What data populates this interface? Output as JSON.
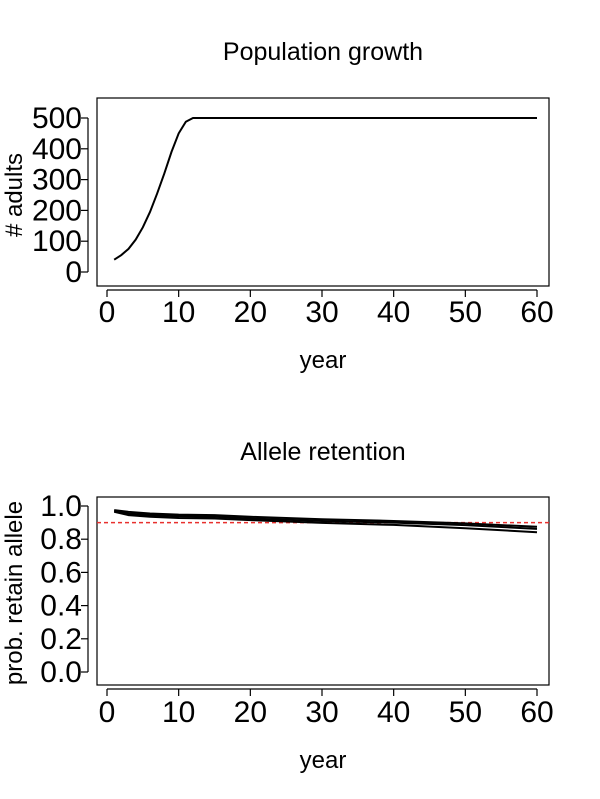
{
  "chart_data": [
    {
      "type": "line",
      "title": "Population growth",
      "xlabel": "year",
      "ylabel": "# adults",
      "xlim": [
        0,
        60
      ],
      "ylim": [
        0,
        500
      ],
      "xticks": [
        0,
        10,
        20,
        30,
        40,
        50,
        60
      ],
      "yticks": [
        0,
        100,
        200,
        300,
        400,
        500
      ],
      "series": [
        {
          "x": [
            1,
            2,
            3,
            4,
            5,
            6,
            7,
            8,
            9,
            10,
            11,
            12,
            13,
            20,
            30,
            40,
            50,
            60
          ],
          "values": [
            40,
            55,
            75,
            105,
            145,
            195,
            255,
            320,
            390,
            450,
            488,
            500,
            500,
            500,
            500,
            500,
            500,
            500
          ]
        }
      ],
      "grid": false
    },
    {
      "type": "line",
      "title": "Allele retention",
      "xlabel": "year",
      "ylabel": "prob. retain allele",
      "xlim": [
        0,
        60
      ],
      "ylim": [
        0,
        1
      ],
      "xticks": [
        0,
        10,
        20,
        30,
        40,
        50,
        60
      ],
      "yticks": [
        0.0,
        0.2,
        0.4,
        0.6,
        0.8,
        1.0
      ],
      "ytick_labels": [
        "0.0",
        "0.2",
        "0.4",
        "0.6",
        "0.8",
        "1.0"
      ],
      "series": [
        {
          "x": [
            1,
            3,
            6,
            10,
            15,
            20,
            30,
            40,
            50,
            60
          ],
          "values": [
            0.975,
            0.965,
            0.955,
            0.948,
            0.945,
            0.935,
            0.92,
            0.91,
            0.895,
            0.875
          ]
        },
        {
          "x": [
            1,
            3,
            6,
            10,
            15,
            20,
            30,
            40,
            50,
            60
          ],
          "values": [
            0.97,
            0.955,
            0.945,
            0.938,
            0.935,
            0.925,
            0.91,
            0.9,
            0.885,
            0.862
          ]
        },
        {
          "x": [
            1,
            3,
            6,
            10,
            15,
            20,
            30,
            40,
            50,
            60
          ],
          "values": [
            0.965,
            0.945,
            0.935,
            0.928,
            0.925,
            0.915,
            0.898,
            0.886,
            0.866,
            0.842
          ]
        }
      ],
      "reference_line": {
        "y": 0.9,
        "color": "#e8302e",
        "style": "dashed"
      },
      "grid": false
    }
  ]
}
